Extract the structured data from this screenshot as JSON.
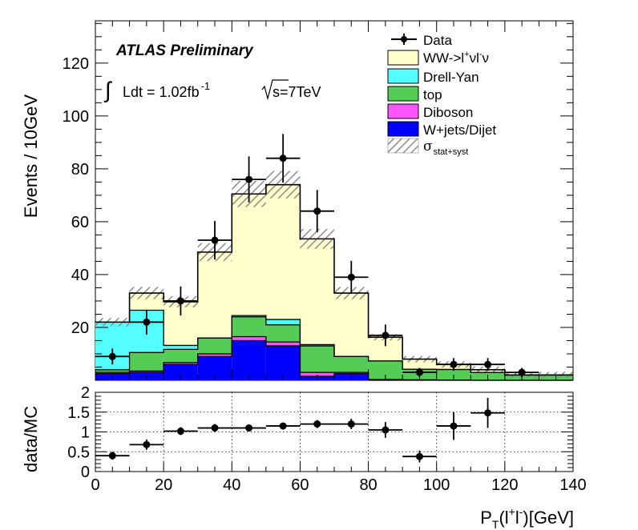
{
  "chart_data": [
    {
      "type": "bar",
      "stacked": true,
      "xlim": [
        0,
        140
      ],
      "ylim": [
        0,
        136
      ],
      "ylabel": "Events / 10GeV",
      "bin_edges": [
        0,
        10,
        20,
        30,
        40,
        50,
        60,
        70,
        80,
        90,
        100,
        110,
        120,
        130,
        140
      ],
      "yticks": [
        20,
        40,
        60,
        80,
        100,
        120
      ],
      "annotations": {
        "atlas": "ATLAS Preliminary",
        "lumi_prefix": "Ldt = 1.02fb",
        "lumi_exp": "-1",
        "sqrt_label": "s=7TeV"
      },
      "legend": {
        "placement": "top-right",
        "data": "Data",
        "ww": "WW->l",
        "ww_tail": "νl",
        "ww_end": "ν",
        "dy": "Drell-Yan",
        "top": "top",
        "diboson": "Diboson",
        "wjets": "W+jets/Dijet",
        "unc_sub": "stat+syst"
      },
      "series": [
        {
          "name": "W+jets/Dijet",
          "color": "#0000ff",
          "values": [
            2.5,
            3,
            6,
            9,
            15,
            13,
            1.5,
            2.5,
            0,
            0,
            0,
            0,
            0,
            0
          ]
        },
        {
          "name": "Diboson",
          "color": "#ff55ff",
          "values": [
            0.5,
            0.5,
            0.7,
            1,
            1.5,
            1.5,
            1.5,
            0.5,
            0.3,
            0.2,
            0.1,
            0,
            0,
            0
          ]
        },
        {
          "name": "top",
          "color": "#55cc55",
          "values": [
            1,
            7,
            5,
            6,
            7.5,
            6.5,
            10,
            6,
            7,
            4,
            4,
            3,
            2,
            2
          ]
        },
        {
          "name": "Drell-Yan",
          "color": "#55ffff",
          "values": [
            18,
            16,
            1.5,
            0,
            0.5,
            2,
            0.5,
            0,
            0,
            0,
            0,
            0,
            0,
            0
          ]
        },
        {
          "name": "WW->lνlν",
          "color": "#ffffcc",
          "values": [
            0,
            6.5,
            16.5,
            32.5,
            46,
            51,
            40,
            24,
            9,
            3.8,
            1.9,
            1,
            0,
            0
          ]
        }
      ],
      "uncertainty_band": {
        "name": "σ stat+syst",
        "rel": 0.07
      },
      "data_points": {
        "name": "Data",
        "x": [
          5,
          15,
          25,
          35,
          45,
          55,
          65,
          75,
          85,
          95,
          105,
          115,
          125
        ],
        "y": [
          9,
          22,
          30,
          53,
          76,
          84,
          64,
          39,
          17,
          3,
          6,
          6,
          3
        ],
        "err": [
          3,
          4.7,
          5.5,
          7.3,
          8.7,
          9.2,
          8,
          6.2,
          4.1,
          1.7,
          2.4,
          2.4,
          1.7
        ]
      }
    },
    {
      "type": "scatter",
      "xlim": [
        0,
        140
      ],
      "ylim": [
        0,
        2
      ],
      "xlabel_main": "P",
      "xlabel_sub": "T",
      "xlabel_arg": "(l",
      "xlabel_end": ")[GeV]",
      "ylabel": "data/MC",
      "xticks": [
        0,
        20,
        40,
        60,
        80,
        100,
        120,
        140
      ],
      "yticks": [
        0,
        0.5,
        1,
        1.5,
        2
      ],
      "ytick_labels": [
        "0",
        "0.5",
        "1",
        "1.5",
        "2"
      ],
      "points": {
        "x": [
          5,
          15,
          25,
          35,
          45,
          55,
          65,
          75,
          85,
          95,
          105,
          115
        ],
        "y": [
          0.4,
          0.68,
          1.02,
          1.1,
          1.1,
          1.15,
          1.2,
          1.2,
          1.05,
          0.38,
          1.15,
          1.48
        ],
        "err": [
          0.1,
          0.13,
          0.1,
          0.1,
          0.08,
          0.08,
          0.1,
          0.13,
          0.2,
          0.15,
          0.35,
          0.38
        ]
      }
    }
  ]
}
